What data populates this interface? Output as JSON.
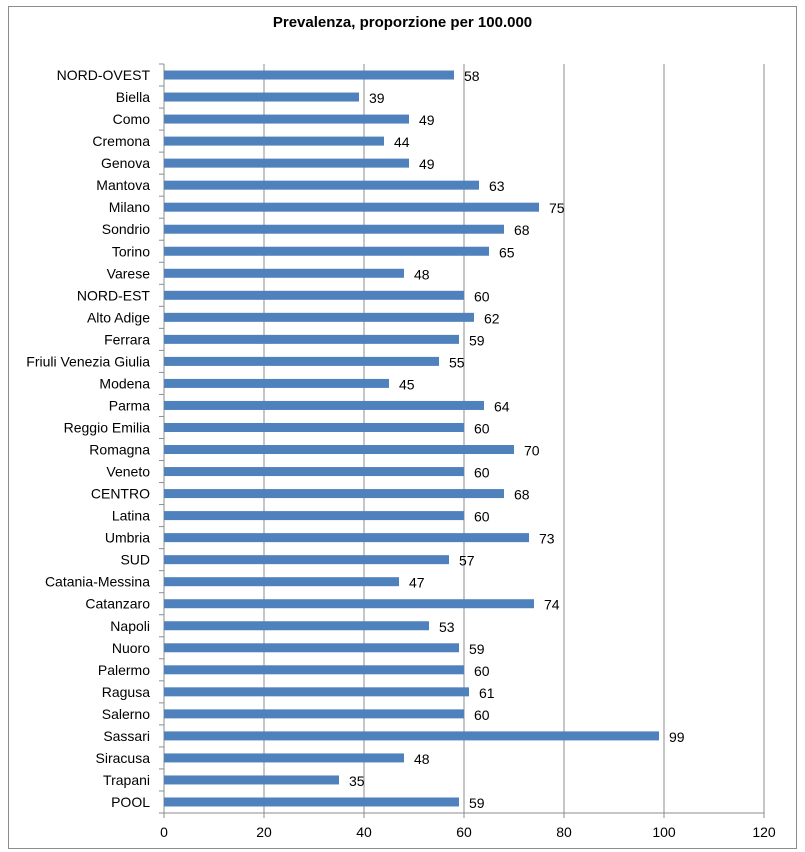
{
  "chart_data": {
    "type": "bar",
    "orientation": "horizontal",
    "title": "Prevalenza, proporzione per 100.000",
    "categories": [
      "NORD-OVEST",
      "Biella",
      "Como",
      "Cremona",
      "Genova",
      "Mantova",
      "Milano",
      "Sondrio",
      "Torino",
      "Varese",
      "NORD-EST",
      "Alto Adige",
      "Ferrara",
      "Friuli Venezia Giulia",
      "Modena",
      "Parma",
      "Reggio Emilia",
      "Romagna",
      "Veneto",
      "CENTRO",
      "Latina",
      "Umbria",
      "SUD",
      "Catania-Messina",
      "Catanzaro",
      "Napoli",
      "Nuoro",
      "Palermo",
      "Ragusa",
      "Salerno",
      "Sassari",
      "Siracusa",
      "Trapani",
      "POOL"
    ],
    "values": [
      58,
      39,
      49,
      44,
      49,
      63,
      75,
      68,
      65,
      48,
      60,
      62,
      59,
      55,
      45,
      64,
      60,
      70,
      60,
      68,
      60,
      73,
      57,
      47,
      74,
      53,
      59,
      60,
      61,
      60,
      99,
      48,
      35,
      59
    ],
    "xlim": [
      0,
      120
    ],
    "xticks": [
      0,
      20,
      40,
      60,
      80,
      100,
      120
    ],
    "grid": "vertical",
    "legend": "none",
    "bar_color": "#4f81bd",
    "grid_color": "#8c8c8c"
  }
}
